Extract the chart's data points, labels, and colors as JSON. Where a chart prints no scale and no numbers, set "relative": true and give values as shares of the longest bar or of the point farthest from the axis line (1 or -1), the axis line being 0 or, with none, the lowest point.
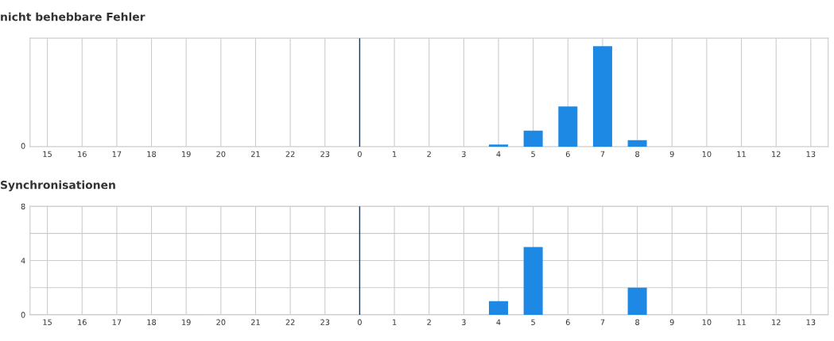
{
  "chart_data": [
    {
      "type": "bar",
      "title": "nicht behebbare Fehler",
      "relative": true,
      "categories": [
        "15",
        "16",
        "17",
        "18",
        "19",
        "20",
        "21",
        "22",
        "23",
        "0",
        "1",
        "2",
        "3",
        "4",
        "5",
        "6",
        "7",
        "8",
        "9",
        "10",
        "11",
        "12",
        "13"
      ],
      "values": [
        null,
        null,
        null,
        null,
        null,
        null,
        null,
        null,
        null,
        null,
        null,
        null,
        null,
        0.02,
        0.16,
        0.4,
        1,
        0.064,
        null,
        null,
        null,
        null,
        null
      ],
      "color": "#1e88e5",
      "annotations": [
        "0"
      ],
      "grid": true,
      "ref_lines": [
        {
          "axis": "x",
          "value": "0",
          "color": "#1f3550"
        }
      ]
    },
    {
      "type": "bar",
      "title": "Synchronisationen",
      "categories": [
        "15",
        "16",
        "17",
        "18",
        "19",
        "20",
        "21",
        "22",
        "23",
        "0",
        "1",
        "2",
        "3",
        "4",
        "5",
        "6",
        "7",
        "8",
        "9",
        "10",
        "11",
        "12",
        "13"
      ],
      "values": [
        0,
        0,
        0,
        0,
        0,
        0,
        0,
        0,
        0,
        0,
        0,
        0,
        0,
        1,
        5,
        0,
        0,
        2,
        0,
        0,
        0,
        0,
        0
      ],
      "color": "#1e88e5",
      "ylim": [
        0,
        8
      ],
      "yticks": [
        0,
        {
          "value": 2,
          "label": null
        },
        4,
        {
          "value": 6,
          "label": null
        },
        8
      ],
      "grid": true,
      "ref_lines": [
        {
          "axis": "x",
          "value": "0",
          "color": "#1f3550"
        }
      ]
    }
  ]
}
